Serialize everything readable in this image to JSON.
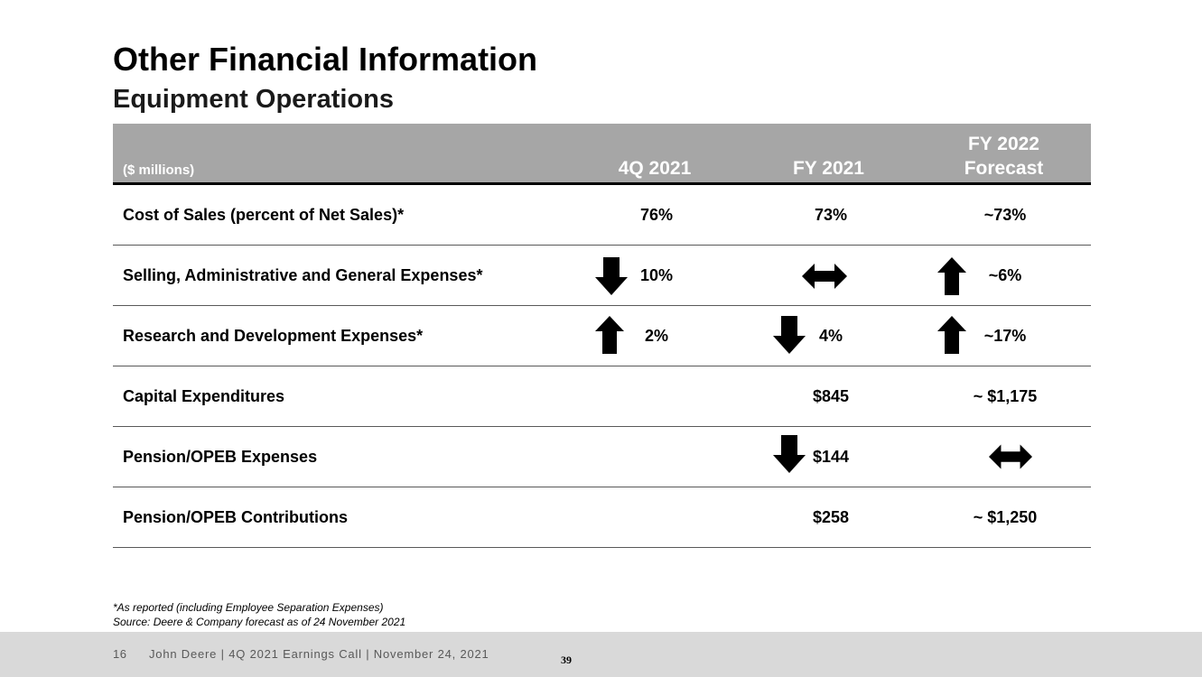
{
  "slide": {
    "title": "Other Financial Information",
    "subtitle": "Equipment Operations"
  },
  "table": {
    "units_label": "($ millions)",
    "columns": [
      "4Q 2021",
      "FY 2021",
      "FY 2022",
      "Forecast"
    ],
    "rows": [
      {
        "label": "Cost of Sales (percent of Net Sales)*",
        "q4": "76%",
        "fy21": "73%",
        "fy22": "~73%"
      },
      {
        "label": "Selling, Administrative and General Expenses*",
        "q4": "10%",
        "fy21": "",
        "fy22": "~6%",
        "q4_arrow": "down-arrow-icon",
        "fy21_arrow": "left-right-arrow-icon",
        "fy22_arrow": "up-arrow-icon"
      },
      {
        "label": "Research and Development Expenses*",
        "q4": "2%",
        "fy21": "4%",
        "fy22": "~17%",
        "q4_arrow": "up-arrow-icon",
        "fy21_arrow": "down-arrow-icon",
        "fy22_arrow": "up-arrow-icon"
      },
      {
        "label": "Capital Expenditures",
        "q4": "",
        "fy21": "$845",
        "fy22": "~ $1,175"
      },
      {
        "label": "Pension/OPEB Expenses",
        "q4": "",
        "fy21": "$144",
        "fy22": "",
        "fy21_arrow": "down-arrow-icon",
        "fy22_arrow": "left-right-arrow-icon"
      },
      {
        "label": "Pension/OPEB Contributions",
        "q4": "",
        "fy21": "$258",
        "fy22": "~ $1,250"
      }
    ]
  },
  "notes": [
    "*As reported (including Employee Separation Expenses)",
    "Source: Deere & Company forecast as of 24 November 2021"
  ],
  "footer": {
    "page_number": "16",
    "text": "John Deere | 4Q 2021 Earnings Call | November 24, 2021",
    "slide_number": "39"
  }
}
